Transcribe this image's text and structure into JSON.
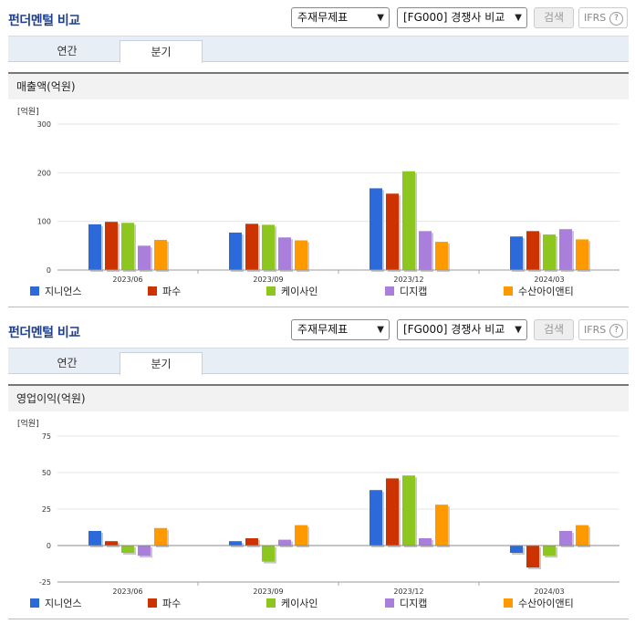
{
  "panels": [
    {
      "title": "펀더멘털 비교",
      "select_statement": "주재무제표",
      "select_compare": "[FG000] 경쟁사 비교",
      "search_label": "검색",
      "ifrs_label": "IFRS",
      "help_glyph": "?",
      "tabs": [
        {
          "label": "연간",
          "active": false
        },
        {
          "label": "분기",
          "active": true
        }
      ],
      "metric_title": "매출액(억원)"
    },
    {
      "title": "펀더멘털 비교",
      "select_statement": "주재무제표",
      "select_compare": "[FG000] 경쟁사 비교",
      "search_label": "검색",
      "ifrs_label": "IFRS",
      "help_glyph": "?",
      "tabs": [
        {
          "label": "연간",
          "active": false
        },
        {
          "label": "분기",
          "active": true
        }
      ],
      "metric_title": "영업이익(억원)"
    }
  ],
  "colors": {
    "series": [
      "#2b6ad8",
      "#cc3300",
      "#8cc61e",
      "#a97fdb",
      "#ff9900"
    ],
    "title_blue": "#1f3f8f",
    "grid": "#e5e5e5"
  },
  "chart_data": [
    {
      "type": "bar",
      "unit_label": "[억원]",
      "categories": [
        "2023/06",
        "2023/09",
        "2023/12",
        "2024/03"
      ],
      "yticks": [
        0,
        100,
        200,
        300
      ],
      "ylim": [
        0,
        300
      ],
      "grid": true,
      "legend": "bottom",
      "series": [
        {
          "name": "지니언스",
          "values": [
            94,
            77,
            168,
            69
          ]
        },
        {
          "name": "파수",
          "values": [
            99,
            95,
            157,
            80
          ]
        },
        {
          "name": "케이사인",
          "values": [
            97,
            93,
            203,
            73
          ]
        },
        {
          "name": "디지캡",
          "values": [
            50,
            67,
            80,
            84
          ]
        },
        {
          "name": "수산아이앤티",
          "values": [
            62,
            61,
            58,
            63
          ]
        }
      ]
    },
    {
      "type": "bar",
      "unit_label": "[억원]",
      "categories": [
        "2023/06",
        "2023/09",
        "2023/12",
        "2024/03"
      ],
      "yticks": [
        -25,
        0,
        25,
        50,
        75
      ],
      "ylim": [
        -25,
        75
      ],
      "grid": true,
      "legend": "bottom",
      "series": [
        {
          "name": "지니언스",
          "values": [
            10,
            3,
            38,
            -5
          ]
        },
        {
          "name": "파수",
          "values": [
            3,
            5,
            46,
            -15
          ]
        },
        {
          "name": "케이사인",
          "values": [
            -5,
            -11,
            48,
            -7
          ]
        },
        {
          "name": "디지캡",
          "values": [
            -7,
            4,
            5,
            10
          ]
        },
        {
          "name": "수산아이앤티",
          "values": [
            12,
            14,
            28,
            14
          ]
        }
      ]
    }
  ]
}
